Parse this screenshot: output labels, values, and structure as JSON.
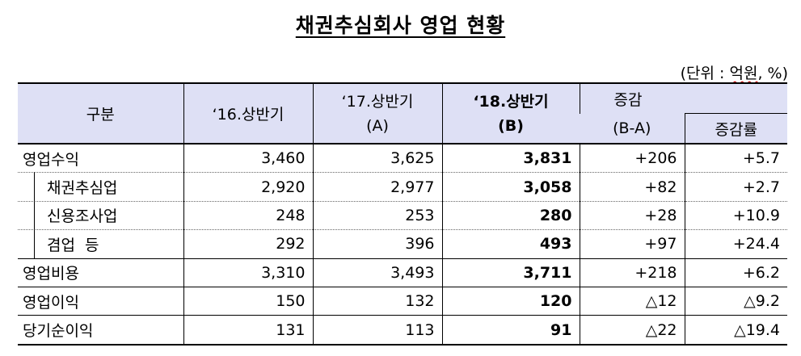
{
  "title": "채권추심회사 영업 현황",
  "unit": {
    "prefix": "(단위 : ",
    "word": "억원",
    "suffix": ", %)"
  },
  "headers": {
    "category": "구분",
    "y16": "‘16.상반기",
    "y17_line1": "‘17.상반기",
    "y17_line2": "(A)",
    "y18_line1": "‘18.상반기",
    "y18_line2": "(B)",
    "change_line1": "증감",
    "change_line2": "(B-A)",
    "rate": "증감률"
  },
  "rows": [
    {
      "label": "영업수익",
      "y16": "3,460",
      "y17": "3,625",
      "y18": "3,831",
      "change": "+206",
      "rate": "+5.7"
    },
    {
      "label": "채권추심업",
      "y16": "2,920",
      "y17": "2,977",
      "y18": "3,058",
      "change": "+82",
      "rate": "+2.7"
    },
    {
      "label": "신용조사업",
      "y16": "248",
      "y17": "253",
      "y18": "280",
      "change": "+28",
      "rate": "+10.9"
    },
    {
      "label": "겸업  등",
      "y16": "292",
      "y17": "396",
      "y18": "493",
      "change": "+97",
      "rate": "+24.4"
    },
    {
      "label": "영업비용",
      "y16": "3,310",
      "y17": "3,493",
      "y18": "3,711",
      "change": "+218",
      "rate": "+6.2"
    },
    {
      "label": "영업이익",
      "y16": "150",
      "y17": "132",
      "y18": "120",
      "change": "△12",
      "rate": "△9.2"
    },
    {
      "label": "당기순이익",
      "y16": "131",
      "y17": "113",
      "y18": "91",
      "change": "△22",
      "rate": "△19.4"
    }
  ]
}
